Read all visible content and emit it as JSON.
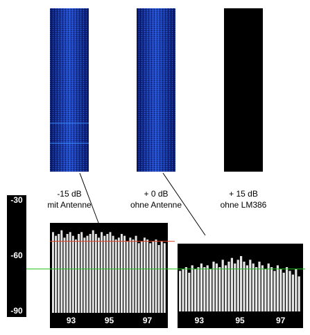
{
  "scale": {
    "ticks": [
      -30,
      -60,
      -90
    ]
  },
  "waterfalls": [
    {
      "level": "-15 dB",
      "setup": "mit Antenne"
    },
    {
      "level": "+ 0 dB",
      "setup": "ohne Antenne"
    },
    {
      "level": "+ 15 dB",
      "setup": "ohne LM386"
    }
  ],
  "reference_lines": {
    "red": -52,
    "green": -67
  },
  "spectra": [
    {
      "xticks": [
        "93",
        "95",
        "97"
      ],
      "levels": [
        -47,
        -49,
        -48,
        -46,
        -50,
        -48,
        -47,
        -49,
        -51,
        -48,
        -47,
        -50,
        -49,
        -48,
        -46,
        -48,
        -50,
        -47,
        -49,
        -48,
        -47,
        -49,
        -51,
        -50,
        -48,
        -49,
        -52,
        -50,
        -51,
        -49,
        -53,
        -52,
        -50,
        -51,
        -53,
        -52,
        -51,
        -54,
        -52,
        -53
      ]
    },
    {
      "xticks": [
        "93",
        "95",
        "97"
      ],
      "levels": [
        -68,
        -67,
        -66,
        -69,
        -65,
        -67,
        -66,
        -64,
        -66,
        -65,
        -67,
        -63,
        -64,
        -66,
        -62,
        -65,
        -63,
        -61,
        -64,
        -62,
        -60,
        -63,
        -65,
        -62,
        -64,
        -66,
        -63,
        -65,
        -67,
        -64,
        -66,
        -68,
        -65,
        -67,
        -69,
        -66,
        -68,
        -70,
        -67,
        -71
      ]
    }
  ]
}
